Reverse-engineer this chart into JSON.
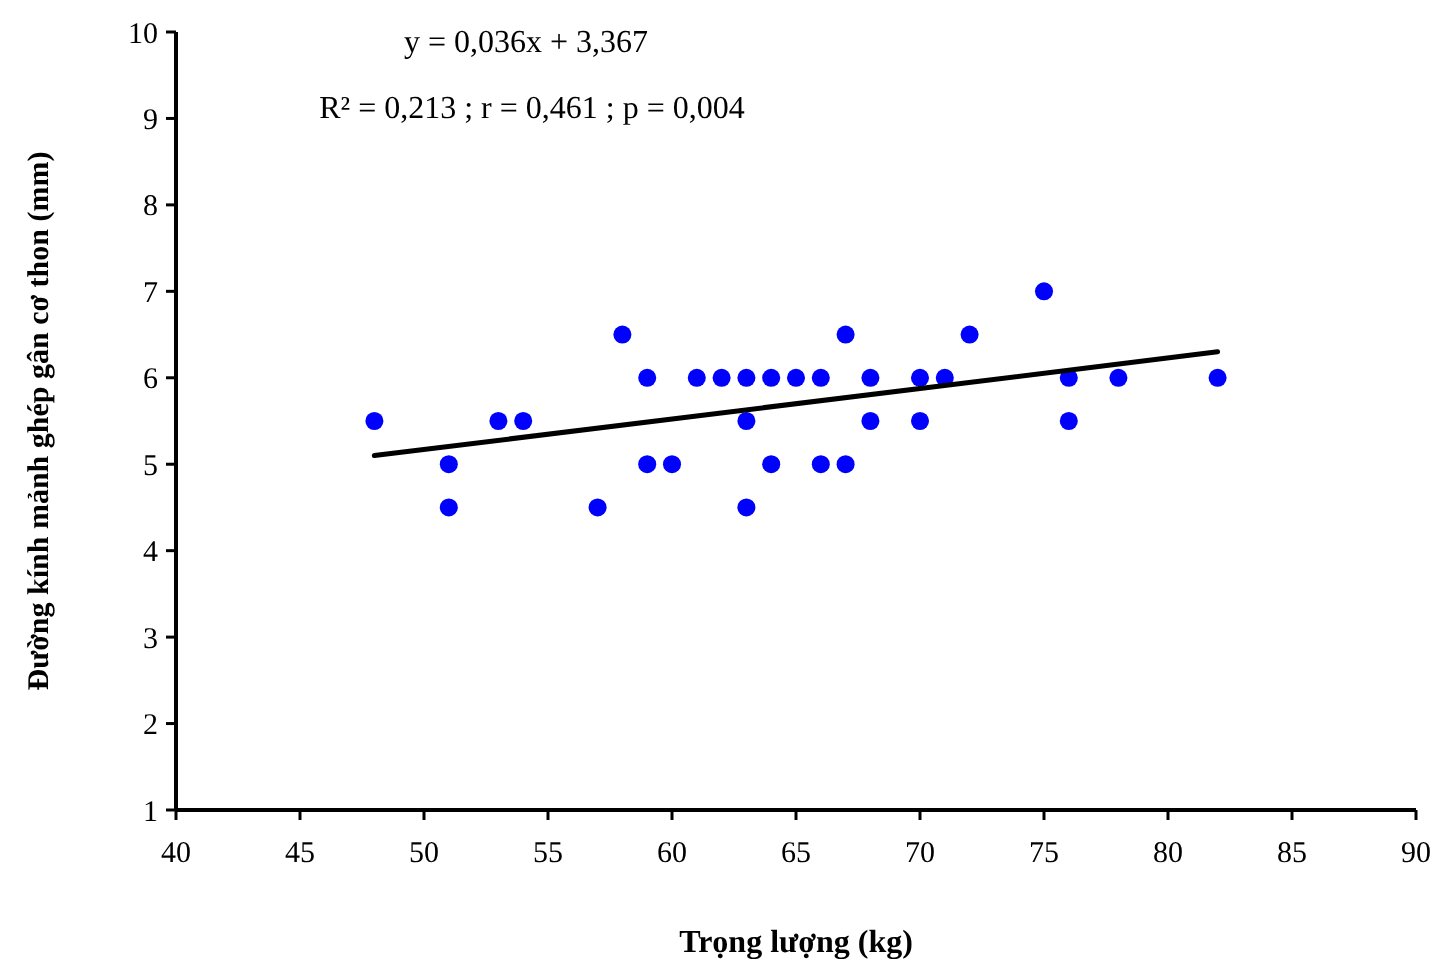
{
  "chart_data": {
    "type": "scatter",
    "xlabel": "Trọng lượng (kg)",
    "ylabel": "Đường kính mảnh ghép gân cơ thon (mm)",
    "annotations": [
      "y = 0,036x + 3,367",
      "R² = 0,213 ; r = 0,461 ; p = 0,004"
    ],
    "xlim": [
      40,
      90
    ],
    "xticks": [
      40,
      45,
      50,
      55,
      60,
      65,
      70,
      75,
      80,
      85,
      90
    ],
    "ylim": [
      1,
      10
    ],
    "yticks": [
      1,
      2,
      3,
      4,
      5,
      6,
      7,
      8,
      9,
      10
    ],
    "grid": false,
    "series": [
      {
        "marker": "circle",
        "color": "#0000ff",
        "x": [
          48,
          51,
          51,
          53,
          54,
          57,
          58,
          59,
          59,
          60,
          61,
          62,
          63,
          63,
          63,
          64,
          64,
          65,
          66,
          66,
          67,
          67,
          68,
          68,
          70,
          70,
          71,
          72,
          75,
          76,
          76,
          78,
          82
        ],
        "values": [
          5.5,
          5,
          4.5,
          5.5,
          5.5,
          4.5,
          6.5,
          6,
          5,
          5,
          6,
          6,
          6,
          5.5,
          4.5,
          6,
          5,
          6,
          6,
          5,
          6.5,
          5,
          6,
          5.5,
          6,
          5.5,
          6,
          6.5,
          7,
          6,
          5.5,
          6,
          6
        ]
      },
      {
        "type": "line",
        "color": "#000000",
        "x": [
          48,
          82
        ],
        "values": [
          5.1,
          6.3
        ],
        "line_style": "solid"
      }
    ]
  }
}
